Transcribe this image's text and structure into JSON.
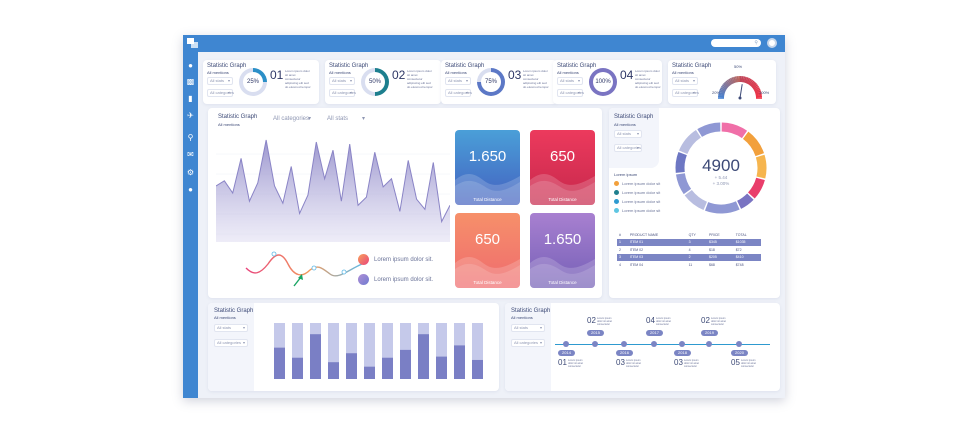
{
  "stat_cards": [
    {
      "title": "Statistic Graph",
      "sub": "All mentions",
      "dd1": "All stats",
      "dd2": "All categories",
      "pct": "25%",
      "num": "01",
      "text": "Lorem ipsum dolor sit amet consectetur adipiscing elit sed do eiusmod tempor",
      "value": 25,
      "color": "#2b8fc7"
    },
    {
      "title": "Statistic Graph",
      "sub": "All mentions",
      "dd1": "All stats",
      "dd2": "All categories",
      "pct": "50%",
      "num": "02",
      "text": "Lorem ipsum dolor sit amet consectetur adipiscing elit sed do eiusmod tempor",
      "value": 50,
      "color": "#1d7f8e"
    },
    {
      "title": "Statistic Graph",
      "sub": "All mentions",
      "dd1": "All stats",
      "dd2": "All categories",
      "pct": "75%",
      "num": "03",
      "text": "Lorem ipsum dolor sit amet consectetur adipiscing elit sed do eiusmod tempor",
      "value": 75,
      "color": "#5c78c6"
    },
    {
      "title": "Statistic Graph",
      "sub": "All mentions",
      "dd1": "All stats",
      "dd2": "All categories",
      "pct": "100%",
      "num": "04",
      "text": "Lorem ipsum dolor sit amet consectetur adipiscing elit sed do eiusmod tempor",
      "value": 100,
      "color": "#7a74c2"
    }
  ],
  "gauge_card": {
    "title": "Statistic Graph",
    "sub": "All mentions",
    "dd1": "All stats",
    "dd2": "All categories",
    "min": "20%",
    "mid": "50%",
    "max": "100%",
    "value": 55
  },
  "main_panel": {
    "title": "Statistic Graph",
    "sub": "All mentions",
    "dd1": "All categories",
    "dd2": "All stats"
  },
  "area_chart": {
    "values": [
      55,
      60,
      48,
      82,
      40,
      58,
      100,
      55,
      38,
      74,
      28,
      46,
      98,
      62,
      90,
      40,
      96,
      36,
      44,
      88,
      54,
      62,
      30,
      80,
      42,
      32,
      78,
      20,
      36
    ],
    "ymax": 100
  },
  "legend": [
    {
      "text": "Lorem ipsum dolor sit.",
      "color1": "#f9a15b",
      "color2": "#e8447b"
    },
    {
      "text": "Lorem ipsum dolor sit.",
      "color1": "#b08fd6",
      "color2": "#6f7bd0"
    }
  ],
  "tiles": [
    {
      "value": "1.650",
      "label": "Total Distance",
      "c1": "#4a9fd8",
      "c2": "#4461c0"
    },
    {
      "value": "650",
      "label": "Total Distance",
      "c1": "#ec3a5d",
      "c2": "#c7284c"
    },
    {
      "value": "650",
      "label": "Total Distance",
      "c1": "#f6906a",
      "c2": "#ef6b6e"
    },
    {
      "value": "1.650",
      "label": "Total Distance",
      "c1": "#a880d0",
      "c2": "#7560b7"
    }
  ],
  "pie_panel": {
    "title": "Statistic Graph",
    "sub": "All mentions",
    "dd1": "All stats",
    "dd2": "All categories",
    "center": "4900",
    "delta1": "+ 5.44",
    "delta2": "+ 3.00%",
    "legend_head": "Lorem ipsum",
    "legend": [
      {
        "text": "Lorem ipsum  dolor sit",
        "color": "#f2a03c"
      },
      {
        "text": "Lorem ipsum  dolor sit",
        "color": "#1f7f8e"
      },
      {
        "text": "Lorem ipsum  dolor sit",
        "color": "#2e9ad0"
      },
      {
        "text": "Lorem ipsum  dolor sit",
        "color": "#5fc6e2"
      }
    ],
    "segments": [
      {
        "value": 10,
        "color": "#f06fa8"
      },
      {
        "value": 10,
        "color": "#f2a03c"
      },
      {
        "value": 9,
        "color": "#f6b54e"
      },
      {
        "value": 8,
        "color": "#e93e6b"
      },
      {
        "value": 6,
        "color": "#7a74c2"
      },
      {
        "value": 13,
        "color": "#8f98d4"
      },
      {
        "value": 9,
        "color": "#b8bde0"
      },
      {
        "value": 8,
        "color": "#8f98d4"
      },
      {
        "value": 8,
        "color": "#6d77c3"
      },
      {
        "value": 10,
        "color": "#b8bde0"
      },
      {
        "value": 9,
        "color": "#8f98d4"
      }
    ],
    "table": {
      "headers": [
        "#",
        "PRODUCT NAME",
        "QTY",
        "PRICE",
        "TOTAL"
      ],
      "rows": [
        [
          "1",
          "ITEM 01",
          "3",
          "$345",
          "$1035"
        ],
        [
          "2",
          "ITEM 02",
          "4",
          "$18",
          "$72"
        ],
        [
          "3",
          "ITEM 03",
          "2",
          "$205",
          "$410"
        ],
        [
          "4",
          "ITEM 04",
          "11",
          "$68",
          "$748"
        ]
      ]
    }
  },
  "bar_panel": {
    "title": "Statistic Graph",
    "sub": "All mentions",
    "dd1": "All stats",
    "dd2": "All categories",
    "bars": [
      {
        "dark": 56
      },
      {
        "dark": 38
      },
      {
        "dark": 80
      },
      {
        "dark": 30
      },
      {
        "dark": 46
      },
      {
        "dark": 22
      },
      {
        "dark": 38
      },
      {
        "dark": 52
      },
      {
        "dark": 80
      },
      {
        "dark": 40
      },
      {
        "dark": 60
      },
      {
        "dark": 34
      }
    ]
  },
  "timeline_panel": {
    "title": "Statistic Graph",
    "sub": "All mentions",
    "dd1": "All stats",
    "dd2": "All categories",
    "top": [
      {
        "num": "02",
        "year": "2015",
        "text": "Lorem ipsum dolor sit amet consectetur"
      },
      {
        "num": "04",
        "year": "2017",
        "text": "Lorem ipsum dolor sit amet consectetur"
      },
      {
        "num": "02",
        "year": "2019",
        "text": "Lorem ipsum dolor sit amet consectetur"
      }
    ],
    "bottom": [
      {
        "num": "01",
        "year": "2014",
        "text": "Lorem ipsum dolor sit amet consectetur"
      },
      {
        "num": "03",
        "year": "2016",
        "text": "Lorem ipsum dolor sit amet consectetur"
      },
      {
        "num": "03",
        "year": "2018",
        "text": "Lorem ipsum dolor sit amet consectetur"
      },
      {
        "num": "05",
        "year": "2020",
        "text": "Lorem ipsum dolor sit amet consectetur"
      }
    ]
  },
  "sidebar_icons": [
    "user-icon",
    "bar-chart-icon",
    "chat-icon",
    "plane-icon",
    "search-icon",
    "mail-icon",
    "settings-icon",
    "users-icon"
  ]
}
